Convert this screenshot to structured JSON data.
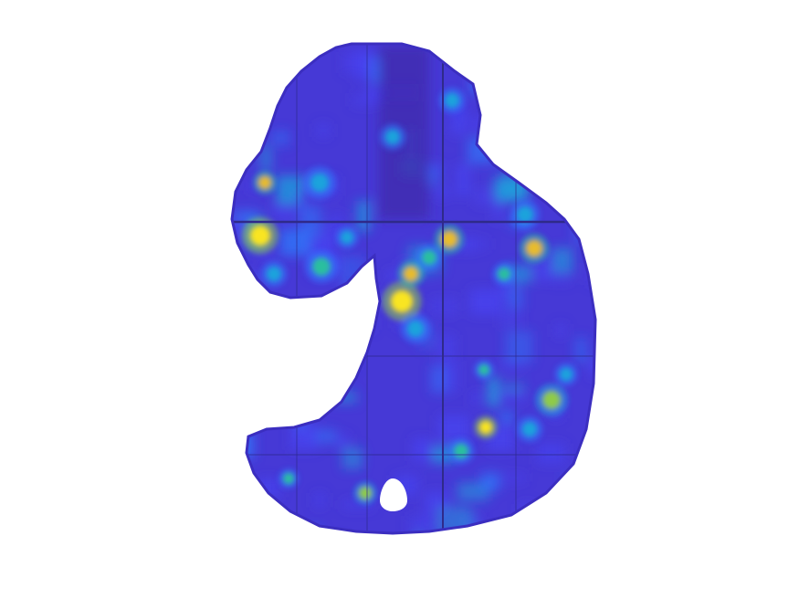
{
  "image": {
    "kind": "spatial heatmap of an irregular tissue-like region",
    "background_color": "#ffffff",
    "colormap": [
      "#3e26a8",
      "#4743f0",
      "#2f78fb",
      "#1ea3dc",
      "#2bbf9f",
      "#8fcb4a",
      "#e8bc2e",
      "#f9e521"
    ],
    "region_color": "#4639d6",
    "grid_line_color": "#2f2a8a",
    "hole_color": "#ffffff"
  }
}
